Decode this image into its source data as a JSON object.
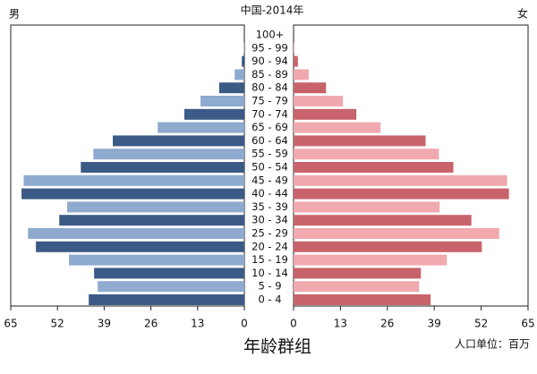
{
  "chart_data": {
    "type": "pyramid",
    "title": "中国-2014年",
    "x_label": "年龄群组",
    "unit_label": "人口单位：百万",
    "categories": [
      "0 - 4",
      "5 - 9",
      "10 - 14",
      "15 - 19",
      "20 - 24",
      "25 - 29",
      "30 - 34",
      "35 - 39",
      "40 - 44",
      "45 - 49",
      "50 - 54",
      "55 - 59",
      "60 - 64",
      "65 - 69",
      "70 - 74",
      "75 - 79",
      "80 - 84",
      "85 - 89",
      "90 - 94",
      "95 - 99",
      "100+"
    ],
    "series": [
      {
        "name": "男",
        "colors": [
          "#3c5a86",
          "#8eaacf"
        ],
        "values": [
          43.3,
          40.8,
          41.8,
          48.8,
          58,
          60.2,
          51.5,
          49.3,
          62,
          61.4,
          45.5,
          42,
          36.6,
          24.1,
          16.7,
          12.2,
          7,
          2.7,
          0.7,
          0.1,
          0
        ]
      },
      {
        "name": "女",
        "colors": [
          "#c9636b",
          "#f0a9ae"
        ],
        "values": [
          38,
          34.8,
          35.3,
          42.5,
          52.2,
          57,
          49.3,
          40.5,
          59.7,
          59.2,
          44.3,
          40.3,
          36.6,
          24.1,
          17.4,
          13.7,
          9,
          4.2,
          1.2,
          0.2,
          0
        ]
      }
    ],
    "xlim": [
      0,
      65
    ],
    "xticks": [
      0,
      13,
      26,
      39,
      52,
      65
    ]
  }
}
